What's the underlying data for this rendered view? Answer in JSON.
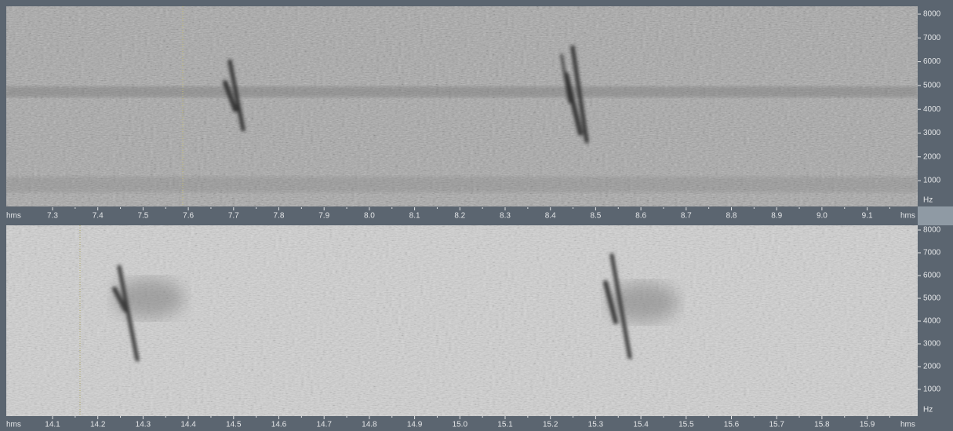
{
  "panels": [
    {
      "time_axis": {
        "start_label": "hms",
        "ticks": [
          "7.3",
          "7.4",
          "7.5",
          "7.6",
          "7.7",
          "7.8",
          "7.9",
          "8.0",
          "8.1",
          "8.2",
          "8.3",
          "8.4",
          "8.5",
          "8.6",
          "8.7",
          "8.8",
          "8.9",
          "9.0",
          "9.1"
        ],
        "end_label": "hms"
      },
      "freq_axis": {
        "ticks": [
          "8000",
          "7000",
          "6000",
          "5000",
          "4000",
          "3000",
          "2000",
          "1000"
        ],
        "unit": "Hz"
      }
    },
    {
      "time_axis": {
        "start_label": "hms",
        "ticks": [
          "14.1",
          "14.2",
          "14.3",
          "14.4",
          "14.5",
          "14.6",
          "14.7",
          "14.8",
          "14.9",
          "15.0",
          "15.1",
          "15.2",
          "15.3",
          "15.4",
          "15.5",
          "15.6",
          "15.7",
          "15.8",
          "15.9"
        ],
        "end_label": "hms"
      },
      "freq_axis": {
        "ticks": [
          "8000",
          "7000",
          "6000",
          "5000",
          "4000",
          "3000",
          "2000",
          "1000"
        ],
        "unit": "Hz"
      }
    }
  ]
}
